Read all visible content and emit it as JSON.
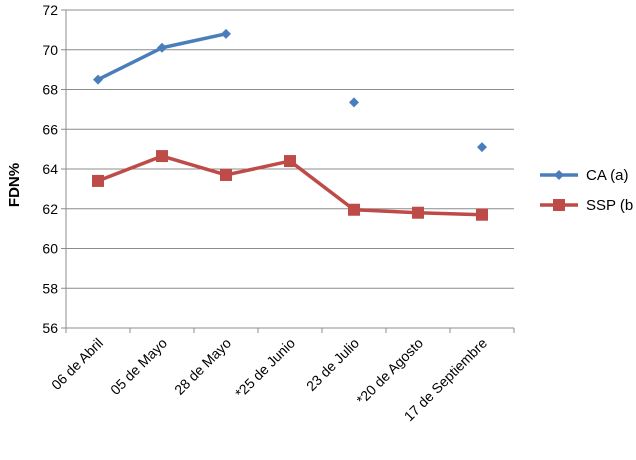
{
  "chart_data": {
    "type": "line",
    "title": "",
    "xlabel": "",
    "ylabel": "FDN%",
    "ylim": [
      56,
      72
    ],
    "ytick_step": 2,
    "grid": "horizontal",
    "legend_position": "right",
    "categories": [
      "06 de Abril",
      "05 de Mayo",
      "28 de Mayo",
      "*25 de Junio",
      "23 de Julio",
      "*20 de Agosto",
      "17 de Septiembre"
    ],
    "series": [
      {
        "name": "CA (a)",
        "color": "#4a7ebb",
        "marker": "diamond",
        "values": [
          68.5,
          70.1,
          70.8,
          null,
          67.35,
          null,
          65.1
        ]
      },
      {
        "name": "SSP (b",
        "color": "#be4b48",
        "marker": "square",
        "values": [
          63.4,
          64.65,
          63.7,
          64.4,
          61.95,
          61.8,
          61.7
        ]
      }
    ]
  }
}
